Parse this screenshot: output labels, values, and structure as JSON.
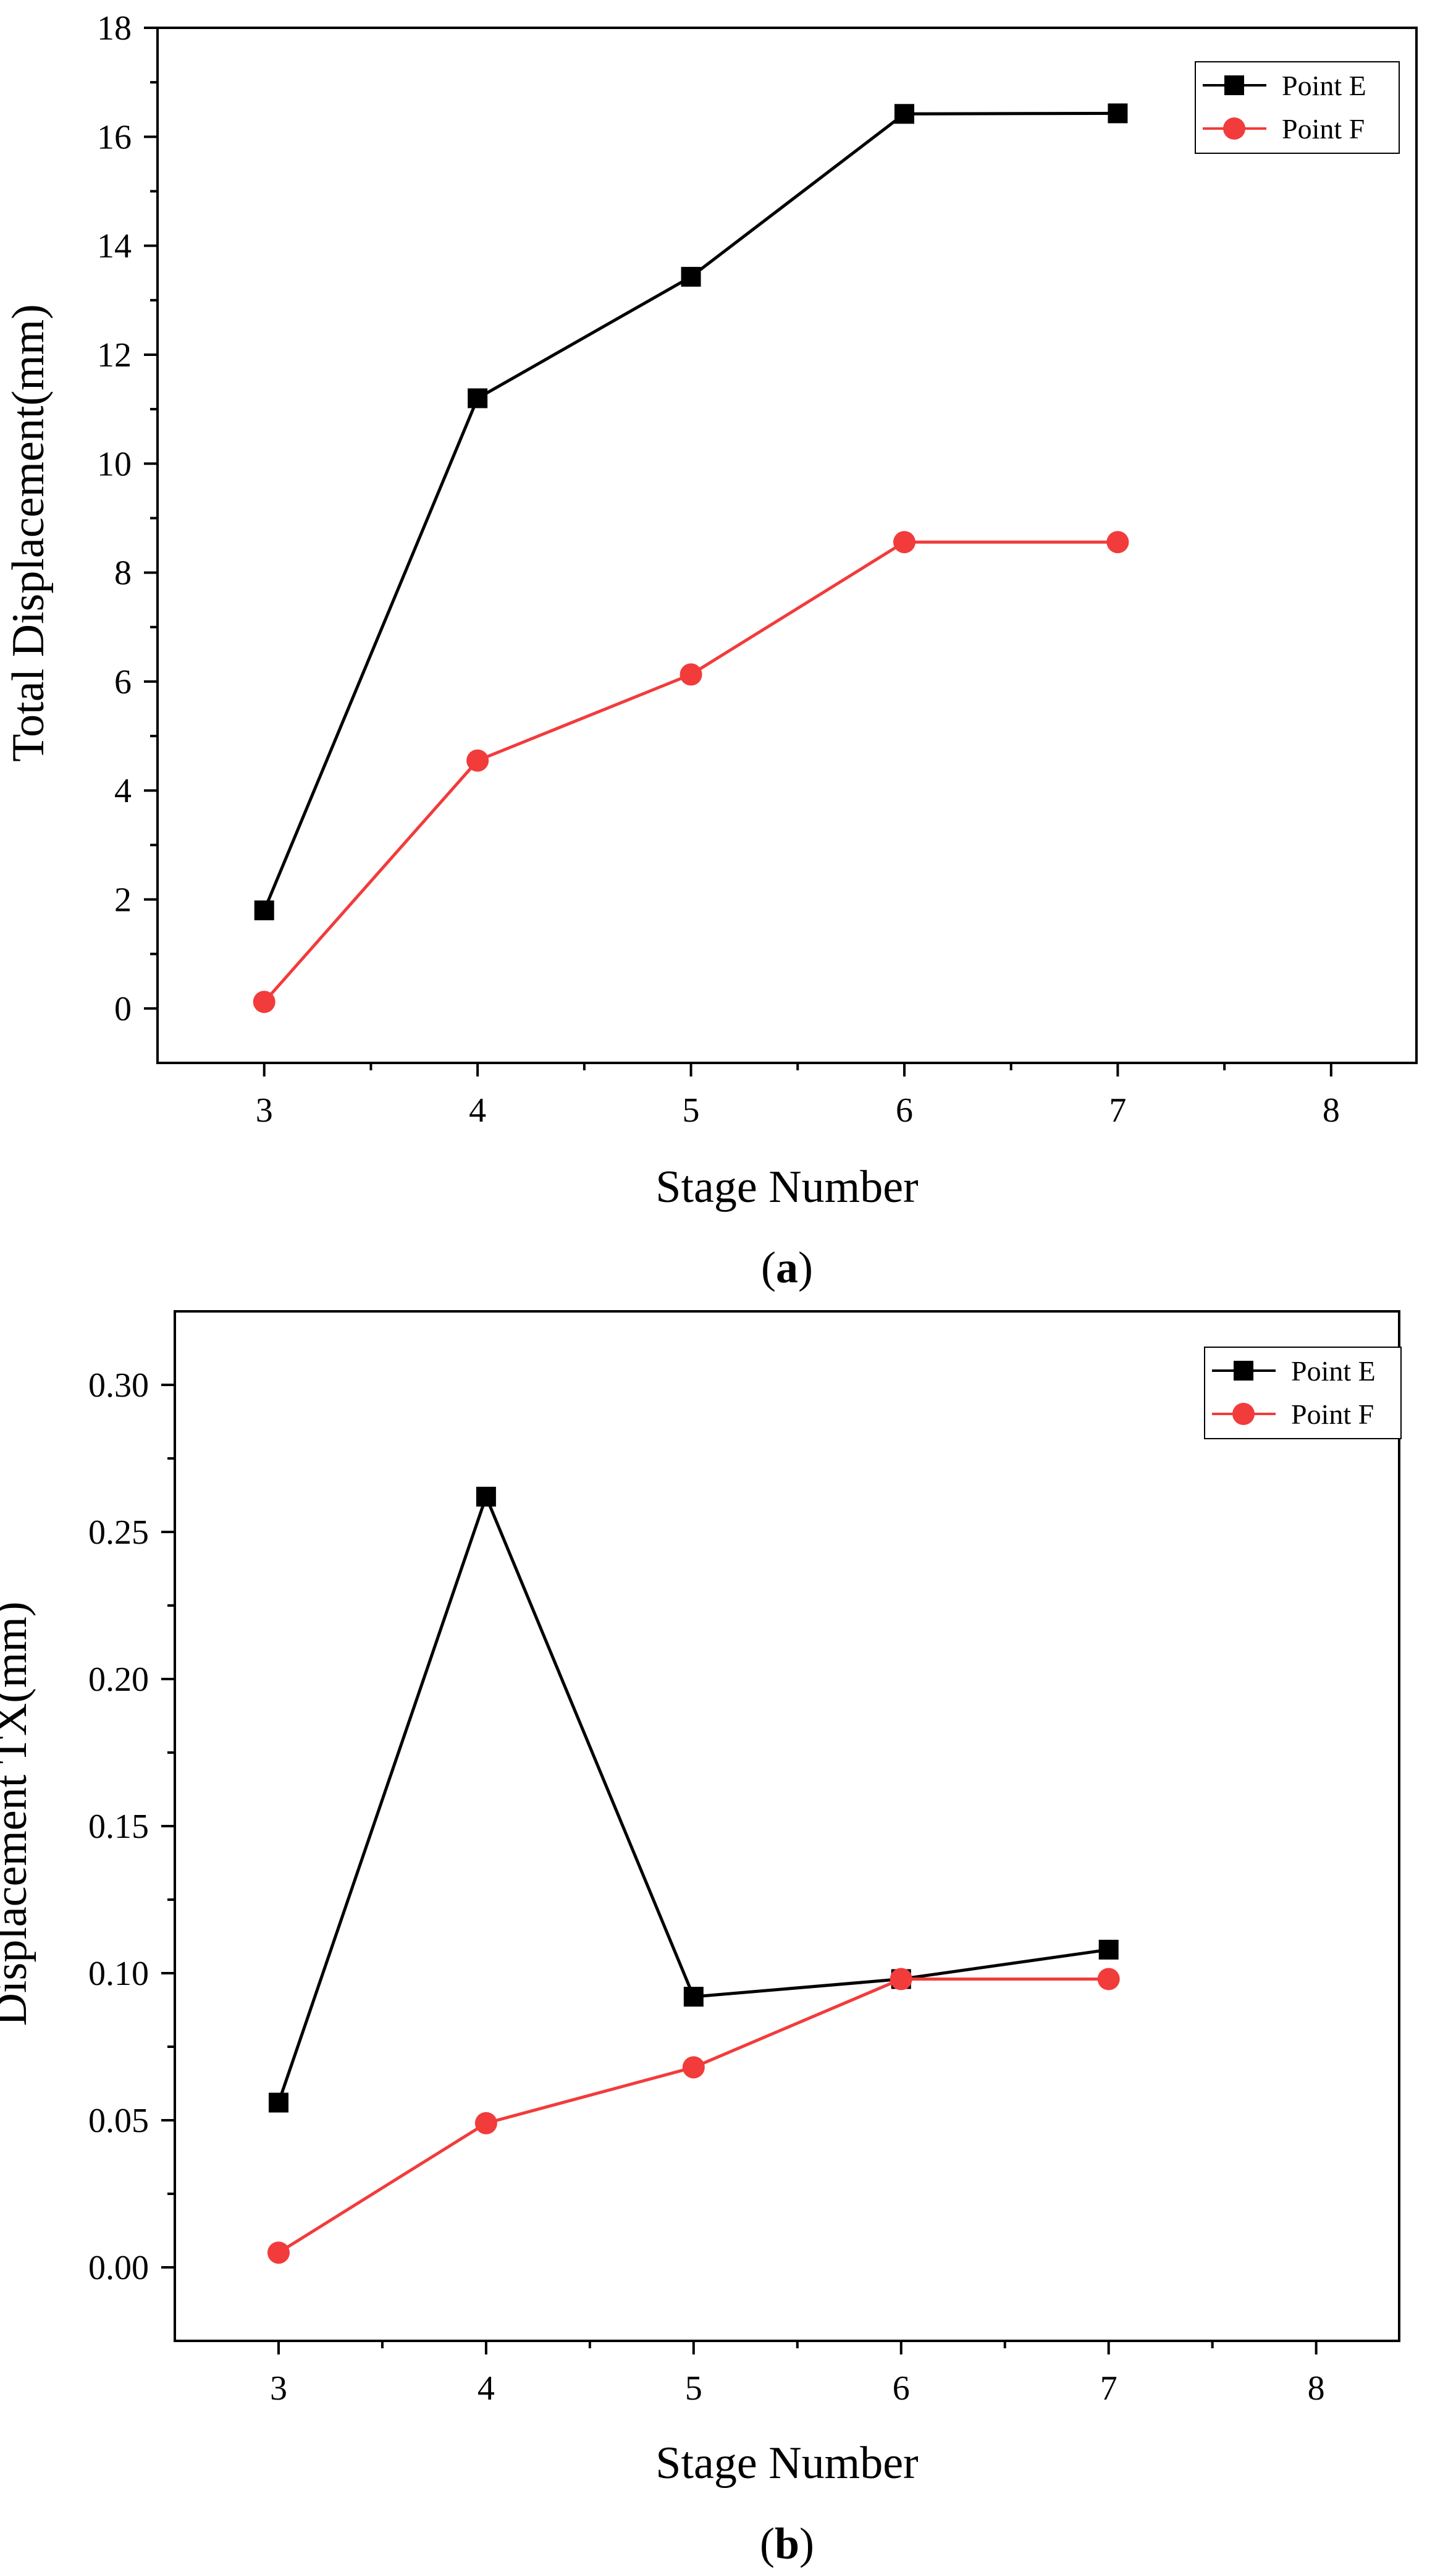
{
  "chart_data": [
    {
      "type": "line",
      "caption_open": "(",
      "caption_letter": "a",
      "caption_close": ")",
      "xlabel": "Stage Number",
      "ylabel": "Total Displacement(mm)",
      "xlim": [
        2.5,
        8.4
      ],
      "ylim": [
        -1,
        18
      ],
      "xticks": [
        3,
        4,
        5,
        6,
        7,
        8
      ],
      "yticks": [
        0,
        2,
        4,
        6,
        8,
        10,
        12,
        14,
        16,
        18
      ],
      "ytick_decimals": 0,
      "legend_position": "top-right",
      "series": [
        {
          "name": "Point E",
          "marker": "square",
          "color": "#000000",
          "x": [
            3,
            4,
            5,
            6,
            7
          ],
          "y": [
            1.8,
            11.2,
            13.43,
            16.42,
            16.43
          ]
        },
        {
          "name": "Point F",
          "marker": "circle",
          "color": "#f23b3b",
          "x": [
            3,
            4,
            5,
            6,
            7
          ],
          "y": [
            0.12,
            4.55,
            6.13,
            8.56,
            8.56
          ]
        }
      ]
    },
    {
      "type": "line",
      "caption_open": "(",
      "caption_letter": "b",
      "caption_close": ")",
      "xlabel": "Stage Number",
      "ylabel": "Displacement TX(mm)",
      "xlim": [
        2.5,
        8.4
      ],
      "ylim": [
        -0.025,
        0.325
      ],
      "xticks": [
        3,
        4,
        5,
        6,
        7,
        8
      ],
      "yticks": [
        0.0,
        0.05,
        0.1,
        0.15,
        0.2,
        0.25,
        0.3
      ],
      "ytick_decimals": 2,
      "legend_position": "top-right",
      "series": [
        {
          "name": "Point E",
          "marker": "square",
          "color": "#000000",
          "x": [
            3,
            4,
            5,
            6,
            7
          ],
          "y": [
            0.056,
            0.262,
            0.092,
            0.098,
            0.108
          ]
        },
        {
          "name": "Point F",
          "marker": "circle",
          "color": "#f23b3b",
          "x": [
            3,
            4,
            5,
            6,
            7
          ],
          "y": [
            0.005,
            0.049,
            0.068,
            0.098,
            0.098
          ]
        }
      ]
    }
  ]
}
